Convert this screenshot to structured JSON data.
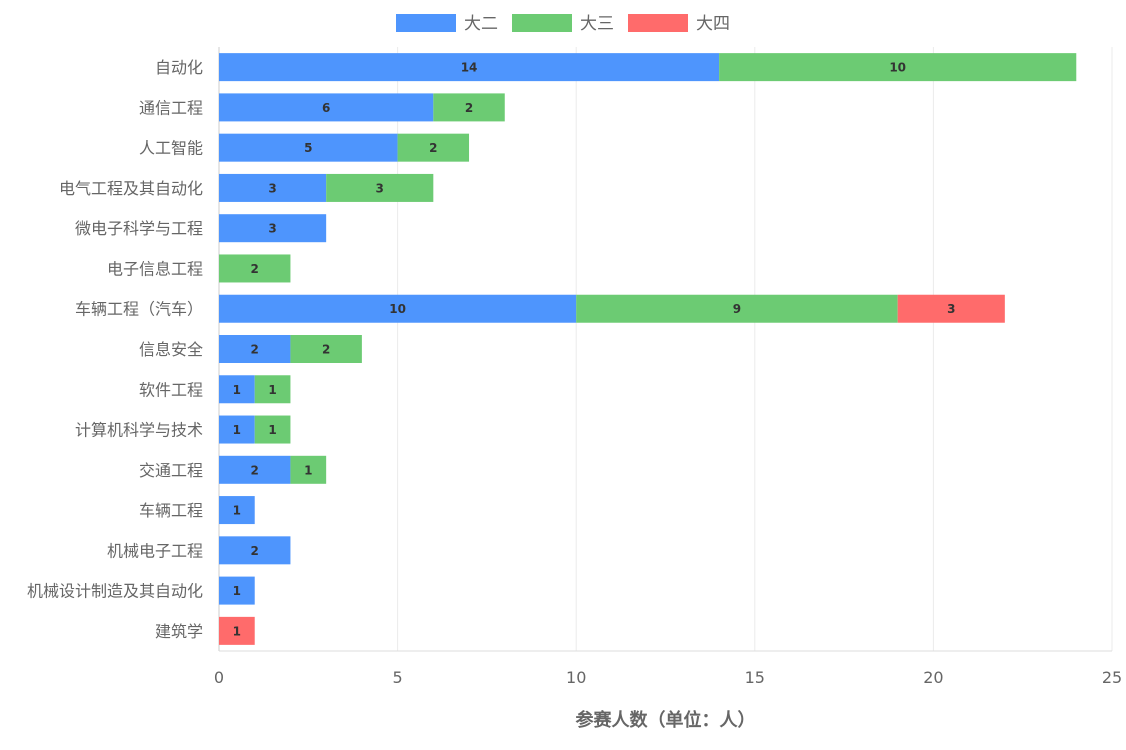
{
  "chart_data": {
    "type": "bar",
    "orientation": "horizontal",
    "stacked": true,
    "categories": [
      "自动化",
      "通信工程",
      "人工智能",
      "电气工程及其自动化",
      "微电子科学与工程",
      "电子信息工程",
      "车辆工程（汽车）",
      "信息安全",
      "软件工程",
      "计算机科学与技术",
      "交通工程",
      "车辆工程",
      "机械电子工程",
      "机械设计制造及其自动化",
      "建筑学"
    ],
    "series": [
      {
        "name": "大二",
        "color": "#4e95fd",
        "values": [
          14,
          6,
          5,
          3,
          3,
          0,
          10,
          2,
          1,
          1,
          2,
          1,
          2,
          1,
          0
        ]
      },
      {
        "name": "大三",
        "color": "#6ccb73",
        "values": [
          10,
          2,
          2,
          3,
          0,
          2,
          9,
          2,
          1,
          1,
          1,
          0,
          0,
          0,
          0
        ]
      },
      {
        "name": "大四",
        "color": "#ff6b6b",
        "values": [
          0,
          0,
          0,
          0,
          0,
          0,
          3,
          0,
          0,
          0,
          0,
          0,
          0,
          0,
          1
        ]
      }
    ],
    "xlabel": "参赛人数（单位：人）",
    "ylabel": "",
    "xlim": [
      0,
      25
    ],
    "xticks": [
      0,
      5,
      10,
      15,
      20,
      25
    ],
    "grid": true,
    "legend_position": "top"
  }
}
